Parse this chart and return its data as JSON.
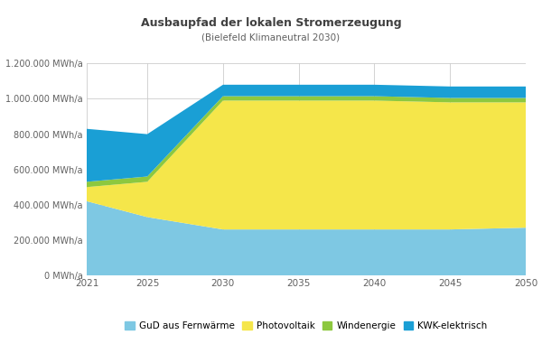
{
  "title": "Ausbaupfad der lokalen Stromerzeugung",
  "subtitle": "(Bielefeld Klimaneutral 2030)",
  "years": [
    2021,
    2025,
    2030,
    2035,
    2040,
    2045,
    2050
  ],
  "GuD_aus_Fernwaerme": [
    420000,
    330000,
    260000,
    260000,
    260000,
    260000,
    270000
  ],
  "Photovoltaik": [
    80000,
    200000,
    730000,
    730000,
    730000,
    720000,
    710000
  ],
  "Windenergie": [
    30000,
    30000,
    25000,
    25000,
    25000,
    25000,
    25000
  ],
  "KWK_elektrisch": [
    300000,
    240000,
    65000,
    65000,
    65000,
    65000,
    65000
  ],
  "colors": {
    "GuD_aus_Fernwaerme": "#7EC8E3",
    "Photovoltaik": "#F5E64A",
    "Windenergie": "#8DC83F",
    "KWK_elektrisch": "#1A9FD5"
  },
  "ylim": [
    0,
    1200000
  ],
  "yticks": [
    0,
    200000,
    400000,
    600000,
    800000,
    1000000,
    1200000
  ],
  "ytick_labels": [
    "0 MWh/a",
    "200.000 MWh/a",
    "400.000 MWh/a",
    "600.000 MWh/a",
    "800.000 MWh/a",
    "1.000.000 MWh/a",
    "1.200.000 MWh/a"
  ],
  "background_color": "#FFFFFF",
  "grid_color": "#CCCCCC",
  "title_color": "#404040",
  "subtitle_color": "#606060",
  "tick_color": "#606060"
}
